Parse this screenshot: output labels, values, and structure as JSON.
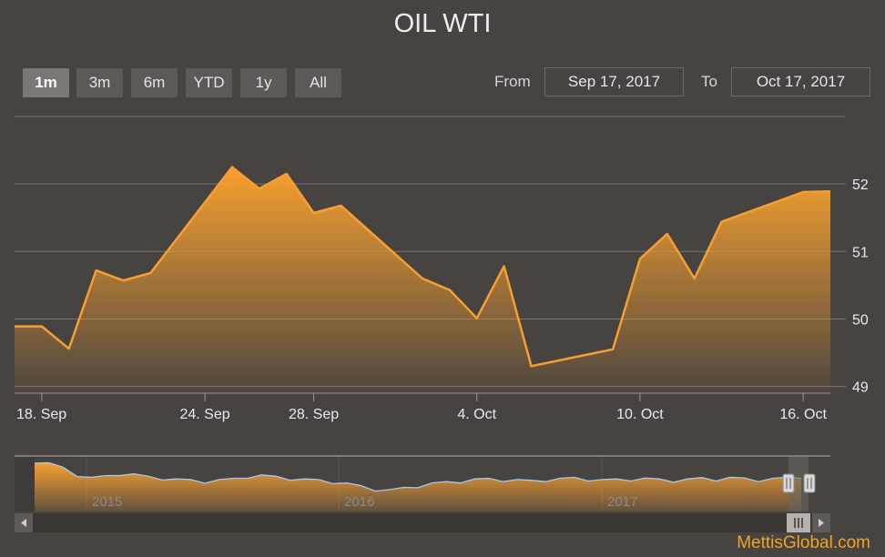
{
  "title": "OIL WTI",
  "range_buttons": [
    "1m",
    "3m",
    "6m",
    "YTD",
    "1y",
    "All"
  ],
  "active_range": "1m",
  "date_range": {
    "from_label": "From",
    "from_value": "Sep 17, 2017",
    "to_label": "To",
    "to_value": "Oct 17, 2017"
  },
  "colors": {
    "background": "#474340",
    "line": "#f7a030",
    "area_top": "#f7a030",
    "navigator_line": "#a9c8f0"
  },
  "watermark": "MettisGlobal.com",
  "navigator": {
    "year_labels": [
      "2015",
      "2016",
      "2017"
    ]
  },
  "chart_data": {
    "type": "area",
    "title": "OIL WTI",
    "xlabel": "",
    "ylabel": "",
    "x_tick_labels": [
      "18. Sep",
      "24. Sep",
      "28. Sep",
      "4. Oct",
      "10. Oct",
      "16. Oct"
    ],
    "y_tick_labels": [
      "49",
      "50",
      "51",
      "52"
    ],
    "ylim": [
      48.9,
      53.0
    ],
    "grid": true,
    "y_axis_position": "right",
    "series": [
      {
        "values": [
          {
            "date": "2017-09-17",
            "value": 49.89
          },
          {
            "date": "2017-09-18",
            "value": 49.89
          },
          {
            "date": "2017-09-19",
            "value": 49.56
          },
          {
            "date": "2017-09-20",
            "value": 50.72
          },
          {
            "date": "2017-09-21",
            "value": 50.57
          },
          {
            "date": "2017-09-22",
            "value": 50.68
          },
          {
            "date": "2017-09-25",
            "value": 52.25
          },
          {
            "date": "2017-09-26",
            "value": 51.93
          },
          {
            "date": "2017-09-27",
            "value": 52.15
          },
          {
            "date": "2017-09-28",
            "value": 51.57
          },
          {
            "date": "2017-09-29",
            "value": 51.68
          },
          {
            "date": "2017-10-02",
            "value": 50.6
          },
          {
            "date": "2017-10-03",
            "value": 50.43
          },
          {
            "date": "2017-10-04",
            "value": 50.01
          },
          {
            "date": "2017-10-05",
            "value": 50.78
          },
          {
            "date": "2017-10-06",
            "value": 49.3
          },
          {
            "date": "2017-10-09",
            "value": 49.55
          },
          {
            "date": "2017-10-10",
            "value": 50.89
          },
          {
            "date": "2017-10-11",
            "value": 51.26
          },
          {
            "date": "2017-10-12",
            "value": 50.6
          },
          {
            "date": "2017-10-13",
            "value": 51.44
          },
          {
            "date": "2017-10-16",
            "value": 51.88
          },
          {
            "date": "2017-10-17",
            "value": 51.89
          }
        ]
      }
    ]
  }
}
